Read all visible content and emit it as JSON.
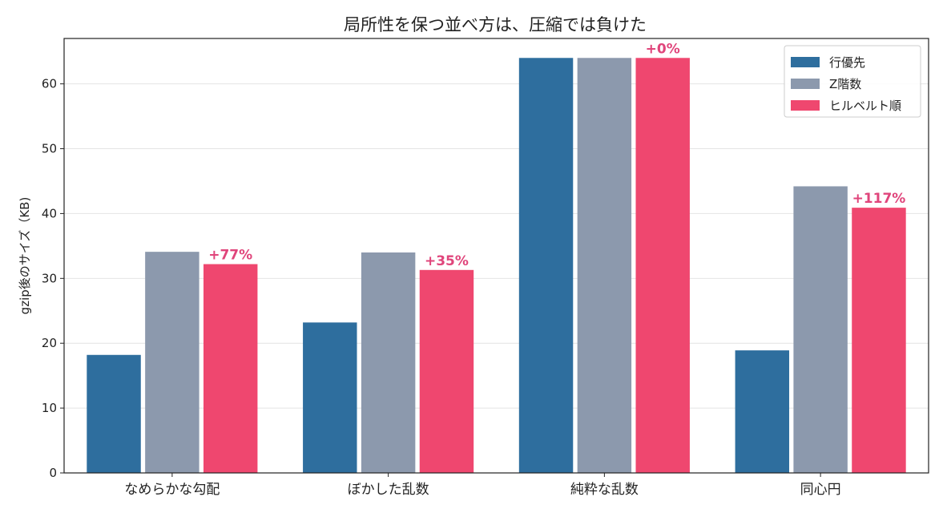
{
  "chart_data": {
    "type": "bar",
    "title": "局所性を保つ並べ方は、圧縮では負けた",
    "xlabel": "",
    "ylabel": "gzip後のサイズ（KB)",
    "ylim": [
      0,
      67
    ],
    "yticks": [
      0,
      10,
      20,
      30,
      40,
      50,
      60
    ],
    "grid": "y",
    "legend": "top-right",
    "categories": [
      "なめらかな勾配",
      "ぼかした乱数",
      "純粋な乱数",
      "同心円"
    ],
    "series": [
      {
        "name": "行優先",
        "color": "#2e6e9e",
        "values": [
          18.2,
          23.2,
          64.0,
          18.9
        ]
      },
      {
        "name": "Z階数",
        "color": "#8c99ad",
        "values": [
          34.1,
          34.0,
          64.0,
          44.2
        ]
      },
      {
        "name": "ヒルベルト順",
        "color": "#ef476f",
        "values": [
          32.2,
          31.3,
          64.0,
          40.9
        ]
      }
    ],
    "annotations": [
      "+77%",
      "+35%",
      "+0%",
      "+117%"
    ],
    "annotation_color": "#e0457b"
  }
}
